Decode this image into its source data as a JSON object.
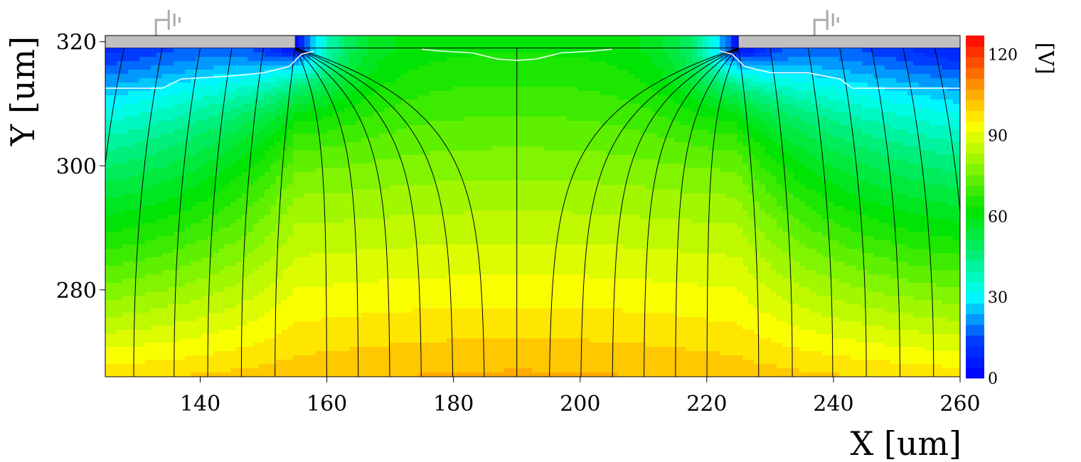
{
  "chart_data": {
    "type": "heatmap",
    "title": "",
    "xlabel": "X [um]",
    "ylabel": "Y [um]",
    "xlim": [
      125,
      260
    ],
    "ylim": [
      266,
      321
    ],
    "x_ticks": [
      140,
      160,
      180,
      200,
      220,
      240,
      260
    ],
    "y_ticks": [
      280,
      300,
      320
    ],
    "colorbar": {
      "label": "[V]",
      "range": [
        0,
        127
      ],
      "ticks": [
        0,
        30,
        60,
        90,
        120
      ],
      "levels": 32
    },
    "potential_model": {
      "description_values": "field potential in V",
      "top_surface_y": 319,
      "electrodes_v": 0,
      "gap_center_x": 190,
      "bottom_center_v": 104,
      "bottom_edge_v": 95,
      "gap_surface_v": 63
    },
    "electrodes": [
      {
        "name": "left-electrode",
        "x_start": 125,
        "x_end": 155,
        "y_bottom": 319,
        "y_top": 321
      },
      {
        "name": "right-electrode",
        "x_start": 225,
        "x_end": 260,
        "y_bottom": 319,
        "y_top": 321
      }
    ],
    "ground_symbols_x": [
      133,
      237
    ],
    "field_line_start_x": [
      128,
      134,
      140,
      145,
      150,
      155,
      160,
      165,
      170,
      175,
      180,
      185,
      190,
      195,
      200,
      205,
      210,
      215,
      220,
      225,
      230,
      236,
      241,
      246,
      251,
      256
    ],
    "colors": {
      "electrode": "#c0c0c0",
      "electrode_edge": "#1a2a8a",
      "field_line": "#000000",
      "contour": "#ffffff"
    }
  }
}
